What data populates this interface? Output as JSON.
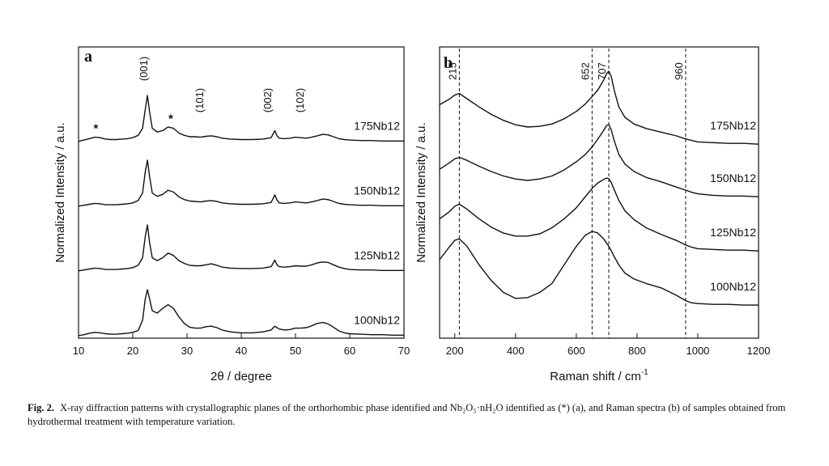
{
  "caption": {
    "label": "Fig. 2.",
    "text": "X-ray diffraction patterns with crystallographic planes of the orthorhombic phase identified and Nb₂O₅·nH₂O identified as (*) (a), and Raman spectra (b) of samples obtained from hydrothermal treatment with temperature variation."
  },
  "chart_data": [
    {
      "type": "line",
      "panel_label": "a",
      "xlabel": "2θ / degree",
      "ylabel": "Normalized Intensity / a.u.",
      "xlim": [
        10,
        70
      ],
      "x_ticks": [
        10,
        20,
        30,
        40,
        50,
        60,
        70
      ],
      "y_ticks_shown": false,
      "annotations": [
        {
          "text": "(001)",
          "x": 22.7
        },
        {
          "text": "(101)",
          "x": 33.0
        },
        {
          "text": "(002)",
          "x": 45.5
        },
        {
          "text": "(102)",
          "x": 51.5
        },
        {
          "text": "*",
          "x": 13.2
        },
        {
          "text": "*",
          "x": 27.0
        }
      ],
      "series": [
        {
          "name": "175Nb12",
          "x": [
            10,
            11,
            12,
            13,
            14,
            15,
            16,
            17,
            18,
            19,
            20,
            21,
            21.8,
            22.3,
            22.7,
            23.1,
            23.6,
            24.5,
            25.5,
            26.5,
            27.5,
            28.5,
            29.5,
            30.5,
            31.5,
            32.5,
            33.5,
            34.5,
            35.5,
            36.5,
            38,
            40,
            42,
            44,
            45.5,
            46.2,
            46.6,
            47,
            48,
            49,
            50,
            51,
            52,
            53,
            54,
            55,
            56,
            57,
            58,
            59,
            60,
            62,
            64,
            66,
            68,
            70
          ],
          "y": [
            0.02,
            0.05,
            0.08,
            0.11,
            0.1,
            0.07,
            0.06,
            0.06,
            0.07,
            0.08,
            0.1,
            0.15,
            0.3,
            0.7,
            1.0,
            0.65,
            0.3,
            0.22,
            0.25,
            0.33,
            0.3,
            0.2,
            0.15,
            0.12,
            0.12,
            0.11,
            0.13,
            0.14,
            0.12,
            0.09,
            0.07,
            0.06,
            0.06,
            0.07,
            0.1,
            0.25,
            0.14,
            0.09,
            0.08,
            0.09,
            0.11,
            0.1,
            0.09,
            0.11,
            0.14,
            0.17,
            0.16,
            0.12,
            0.08,
            0.06,
            0.05,
            0.04,
            0.04,
            0.03,
            0.03,
            0.03
          ]
        },
        {
          "name": "150Nb12",
          "x": [
            10,
            11,
            12,
            13,
            14,
            15,
            16,
            17,
            18,
            19,
            20,
            21,
            21.8,
            22.3,
            22.7,
            23.1,
            23.6,
            24.5,
            25.5,
            26.5,
            27.5,
            28.5,
            29.5,
            30.5,
            31.5,
            32.5,
            33.5,
            34.5,
            35.5,
            36.5,
            38,
            40,
            42,
            44,
            45.5,
            46.2,
            46.6,
            47,
            48,
            49,
            50,
            51,
            52,
            53,
            54,
            55,
            56,
            57,
            58,
            59,
            60,
            62,
            64,
            66,
            68,
            70
          ],
          "y": [
            0.02,
            0.04,
            0.06,
            0.08,
            0.07,
            0.05,
            0.05,
            0.05,
            0.06,
            0.07,
            0.09,
            0.14,
            0.3,
            0.75,
            1.0,
            0.65,
            0.3,
            0.23,
            0.27,
            0.36,
            0.32,
            0.22,
            0.16,
            0.13,
            0.12,
            0.11,
            0.13,
            0.14,
            0.12,
            0.09,
            0.07,
            0.06,
            0.06,
            0.07,
            0.1,
            0.26,
            0.15,
            0.09,
            0.08,
            0.09,
            0.11,
            0.1,
            0.09,
            0.11,
            0.14,
            0.17,
            0.16,
            0.12,
            0.08,
            0.06,
            0.05,
            0.04,
            0.04,
            0.03,
            0.03,
            0.03
          ]
        },
        {
          "name": "125Nb12",
          "x": [
            10,
            11,
            12,
            13,
            14,
            15,
            16,
            17,
            18,
            19,
            20,
            21,
            21.8,
            22.3,
            22.7,
            23.1,
            23.6,
            24.5,
            25.5,
            26.5,
            27.5,
            28.5,
            29.5,
            30.5,
            31.5,
            32.5,
            33.5,
            34.5,
            35.5,
            36.5,
            38,
            40,
            42,
            44,
            45.5,
            46.2,
            46.6,
            47,
            48,
            49,
            50,
            51,
            52,
            53,
            54,
            55,
            56,
            57,
            58,
            59,
            60,
            62,
            64,
            66,
            68,
            70
          ],
          "y": [
            0.02,
            0.04,
            0.06,
            0.08,
            0.07,
            0.05,
            0.05,
            0.05,
            0.06,
            0.07,
            0.09,
            0.14,
            0.3,
            0.75,
            1.0,
            0.62,
            0.3,
            0.24,
            0.3,
            0.4,
            0.35,
            0.24,
            0.18,
            0.14,
            0.13,
            0.13,
            0.15,
            0.17,
            0.14,
            0.1,
            0.08,
            0.07,
            0.07,
            0.08,
            0.11,
            0.25,
            0.15,
            0.11,
            0.1,
            0.11,
            0.13,
            0.12,
            0.12,
            0.15,
            0.19,
            0.21,
            0.2,
            0.15,
            0.1,
            0.07,
            0.05,
            0.04,
            0.04,
            0.03,
            0.03,
            0.03
          ]
        },
        {
          "name": "100Nb12",
          "x": [
            10,
            11,
            12,
            13,
            14,
            15,
            16,
            17,
            18,
            19,
            20,
            21,
            21.8,
            22.3,
            22.7,
            23.1,
            23.6,
            24.5,
            25.5,
            26.5,
            27.5,
            28.5,
            29.5,
            30.5,
            31.5,
            32.5,
            33.5,
            34.5,
            35.5,
            36.5,
            38,
            40,
            42,
            44,
            45.5,
            46.2,
            46.6,
            47,
            48,
            49,
            50,
            51,
            52,
            53,
            54,
            55,
            56,
            57,
            58,
            59,
            60,
            62,
            64,
            66,
            68,
            70
          ],
          "y": [
            0.02,
            0.04,
            0.07,
            0.09,
            0.08,
            0.06,
            0.05,
            0.05,
            0.06,
            0.07,
            0.09,
            0.13,
            0.35,
            0.8,
            1.0,
            0.8,
            0.55,
            0.5,
            0.6,
            0.68,
            0.6,
            0.42,
            0.28,
            0.2,
            0.18,
            0.18,
            0.21,
            0.22,
            0.19,
            0.14,
            0.1,
            0.08,
            0.08,
            0.1,
            0.14,
            0.22,
            0.19,
            0.16,
            0.14,
            0.15,
            0.18,
            0.18,
            0.19,
            0.23,
            0.28,
            0.3,
            0.27,
            0.2,
            0.12,
            0.08,
            0.06,
            0.05,
            0.04,
            0.04,
            0.03,
            0.03
          ]
        }
      ],
      "series_label_color": "#111111",
      "line_color": "#111111"
    },
    {
      "type": "line",
      "panel_label": "b",
      "xlabel": "Raman shift / cm",
      "xlabel_sup": "-1",
      "ylabel": "Normalized Intensity / a.u.",
      "xlim": [
        150,
        1200
      ],
      "x_ticks": [
        200,
        400,
        600,
        800,
        1000,
        1200
      ],
      "y_ticks_shown": false,
      "reference_lines": [
        {
          "x": 215,
          "label": "215"
        },
        {
          "x": 652,
          "label": "652"
        },
        {
          "x": 707,
          "label": "707"
        },
        {
          "x": 960,
          "label": "960"
        }
      ],
      "series": [
        {
          "name": "175Nb12",
          "x": [
            150,
            180,
            200,
            215,
            240,
            280,
            320,
            360,
            400,
            440,
            480,
            520,
            560,
            600,
            630,
            652,
            670,
            690,
            700,
            707,
            715,
            725,
            740,
            760,
            790,
            830,
            880,
            930,
            960,
            980,
            1000,
            1050,
            1100,
            1150,
            1200
          ],
          "y": [
            0.55,
            0.62,
            0.68,
            0.7,
            0.63,
            0.52,
            0.42,
            0.34,
            0.28,
            0.25,
            0.26,
            0.29,
            0.36,
            0.46,
            0.56,
            0.66,
            0.74,
            0.88,
            0.97,
            1.0,
            0.93,
            0.74,
            0.52,
            0.38,
            0.29,
            0.23,
            0.18,
            0.13,
            0.09,
            0.07,
            0.05,
            0.04,
            0.03,
            0.03,
            0.02
          ]
        },
        {
          "name": "150Nb12",
          "x": [
            150,
            180,
            200,
            215,
            240,
            280,
            320,
            360,
            400,
            440,
            480,
            520,
            560,
            600,
            630,
            652,
            670,
            690,
            700,
            707,
            715,
            725,
            740,
            760,
            790,
            830,
            880,
            930,
            960,
            980,
            1000,
            1050,
            1100,
            1150,
            1200
          ],
          "y": [
            0.4,
            0.48,
            0.54,
            0.56,
            0.52,
            0.44,
            0.37,
            0.31,
            0.27,
            0.25,
            0.27,
            0.31,
            0.39,
            0.5,
            0.6,
            0.7,
            0.8,
            0.92,
            0.99,
            1.0,
            0.93,
            0.78,
            0.6,
            0.47,
            0.37,
            0.29,
            0.23,
            0.16,
            0.12,
            0.09,
            0.07,
            0.05,
            0.04,
            0.04,
            0.03
          ]
        },
        {
          "name": "125Nb12",
          "x": [
            150,
            180,
            200,
            215,
            240,
            280,
            320,
            360,
            400,
            440,
            480,
            520,
            560,
            600,
            630,
            652,
            670,
            690,
            700,
            707,
            715,
            725,
            740,
            760,
            790,
            830,
            880,
            930,
            960,
            980,
            1000,
            1050,
            1100,
            1150,
            1200
          ],
          "y": [
            0.45,
            0.54,
            0.62,
            0.65,
            0.58,
            0.45,
            0.34,
            0.26,
            0.22,
            0.22,
            0.25,
            0.33,
            0.45,
            0.6,
            0.75,
            0.86,
            0.93,
            0.98,
            1.0,
            0.99,
            0.94,
            0.84,
            0.7,
            0.56,
            0.44,
            0.33,
            0.24,
            0.16,
            0.1,
            0.07,
            0.05,
            0.04,
            0.03,
            0.03,
            0.02
          ]
        },
        {
          "name": "100Nb12",
          "x": [
            150,
            180,
            200,
            215,
            240,
            280,
            320,
            360,
            400,
            440,
            480,
            520,
            560,
            600,
            630,
            652,
            670,
            690,
            700,
            707,
            715,
            725,
            740,
            760,
            790,
            830,
            880,
            930,
            960,
            980,
            1000,
            1050,
            1100,
            1150,
            1200
          ],
          "y": [
            0.62,
            0.78,
            0.88,
            0.9,
            0.8,
            0.55,
            0.34,
            0.18,
            0.1,
            0.11,
            0.18,
            0.3,
            0.55,
            0.8,
            0.95,
            1.0,
            0.98,
            0.9,
            0.84,
            0.8,
            0.74,
            0.66,
            0.55,
            0.44,
            0.36,
            0.3,
            0.24,
            0.14,
            0.07,
            0.04,
            0.03,
            0.02,
            0.02,
            0.01,
            0.01
          ]
        }
      ],
      "line_color": "#111111"
    }
  ]
}
